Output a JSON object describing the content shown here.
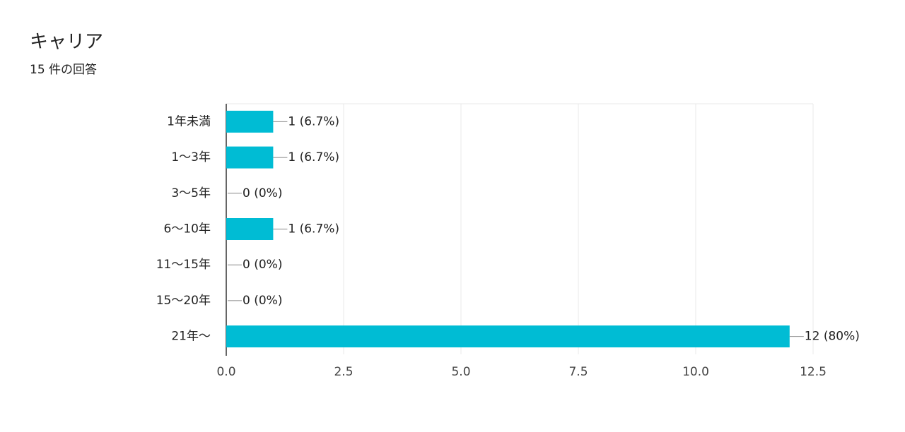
{
  "chart_data": {
    "type": "bar",
    "orientation": "horizontal",
    "title": "キャリア",
    "subtitle": "15 件の回答",
    "categories": [
      "1年未満",
      "1〜3年",
      "3〜5年",
      "6〜10年",
      "11〜15年",
      "15〜20年",
      "21年〜"
    ],
    "values": [
      1,
      1,
      0,
      1,
      0,
      0,
      12
    ],
    "value_labels": [
      "1 (6.7%)",
      "1 (6.7%)",
      "0 (0%)",
      "1 (6.7%)",
      "0 (0%)",
      "0 (0%)",
      "12 (80%)"
    ],
    "color": "#00bcd4",
    "xlim": [
      0,
      12.5
    ],
    "xticks": [
      {
        "value": 0,
        "label": "0.0"
      },
      2.5,
      {
        "value": 5,
        "label": "5.0"
      },
      7.5,
      {
        "value": 10,
        "label": "10.0"
      },
      12.5
    ],
    "grid": true
  }
}
